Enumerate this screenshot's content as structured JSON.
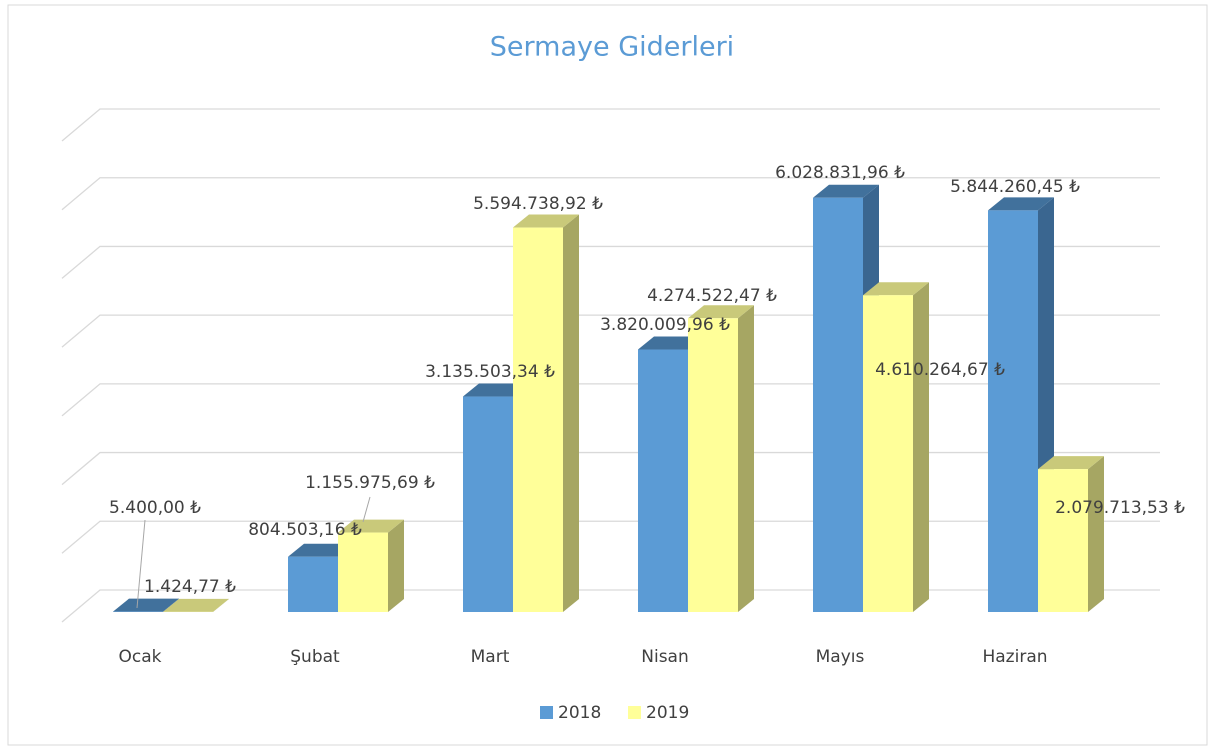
{
  "chart_data": {
    "type": "bar3d",
    "title": "Sermaye Giderleri",
    "categories": [
      "Ocak",
      "Şubat",
      "Mart",
      "Nisan",
      "Mayıs",
      "Haziran"
    ],
    "series": [
      {
        "name": "2018",
        "color": "#5b9bd5",
        "values": [
          5400,
          804503.16,
          3135503.34,
          3820009.96,
          6028831.96,
          5844260.45
        ],
        "value_labels": [
          "5.400,00 ₺",
          "804.503,16 ₺",
          "3.135.503,34 ₺",
          "3.820.009,96 ₺",
          "6.028.831,96 ₺",
          "5.844.260,45 ₺"
        ]
      },
      {
        "name": "2019",
        "color": "#ffff99",
        "values": [
          1424.77,
          1155975.69,
          5594738.92,
          4274522.47,
          4610264.67,
          2079713.53
        ],
        "value_labels": [
          "1.424,77 ₺",
          "1.155.975,69 ₺",
          "5.594.738,92 ₺",
          "4.274.522,47 ₺",
          "4.610.264,67 ₺",
          "2.079.713,53 ₺"
        ]
      }
    ],
    "ylim": [
      0,
      7000000
    ],
    "yticks": [
      0,
      1000000,
      2000000,
      3000000,
      4000000,
      5000000,
      6000000,
      7000000
    ],
    "grid": true,
    "legend": "bottom"
  }
}
